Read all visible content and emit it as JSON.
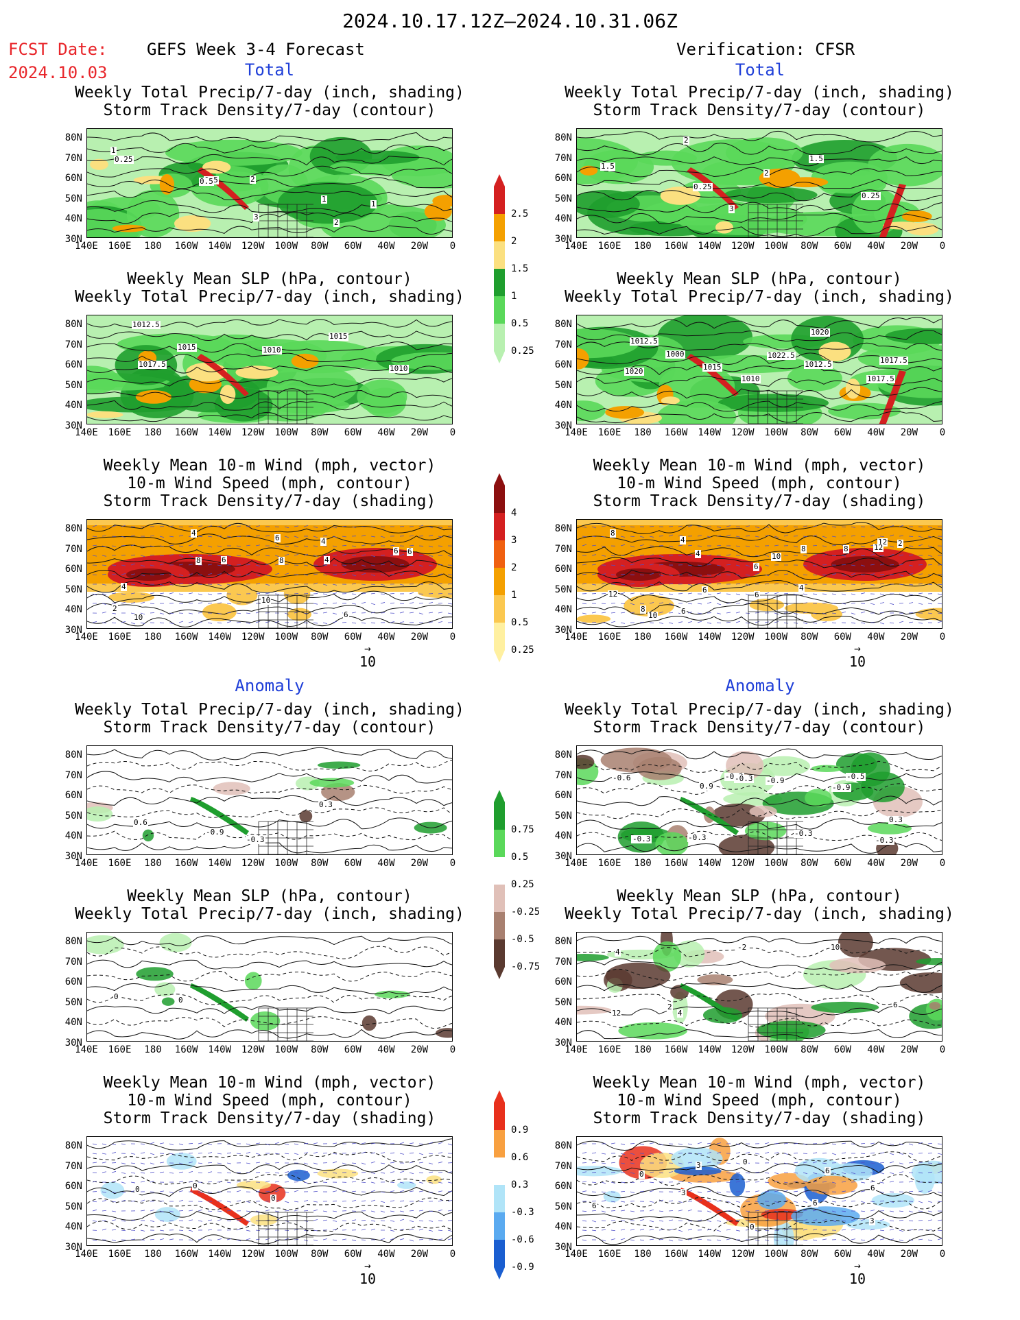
{
  "header": {
    "period": "2024.10.17.12Z—2024.10.31.06Z",
    "fcst_label": "FCST Date:",
    "fcst_date": "2024.10.03",
    "left_title": "GEFS Week 3-4 Forecast",
    "right_title": "Verification: CFSR"
  },
  "sections": {
    "total": "Total",
    "anomaly": "Anomaly"
  },
  "titles": {
    "precip_storm": [
      "Weekly Total Precip/7-day (inch, shading)",
      "Storm Track Density/7-day (contour)"
    ],
    "slp_precip": [
      "Weekly Mean SLP (hPa, contour)",
      "Weekly Total Precip/7-day (inch, shading)"
    ],
    "wind_storm": [
      "Weekly Mean 10-m Wind (mph, vector)",
      "10-m Wind Speed (mph, contour)",
      "Storm Track Density/7-day (shading)"
    ]
  },
  "axes": {
    "lat_ticks": [
      "80N",
      "70N",
      "60N",
      "50N",
      "40N",
      "30N"
    ],
    "lon_ticks": [
      "140E",
      "160E",
      "180",
      "160W",
      "140W",
      "120W",
      "100W",
      "80W",
      "60W",
      "40W",
      "20W",
      "0"
    ]
  },
  "vector_ref": "10",
  "colorbars": {
    "precip_total": [
      "2.5",
      "2",
      "1.5",
      "1",
      "0.5",
      "0.25"
    ],
    "storm_total": [
      "4",
      "3",
      "2",
      "1",
      "0.5",
      "0.25"
    ],
    "precip_anom": [
      "0.75",
      "0.5",
      "0.25",
      "-0.25",
      "-0.5",
      "-0.75"
    ],
    "storm_anom": [
      "0.9",
      "0.6",
      "0.3",
      "-0.3",
      "-0.6",
      "-0.9"
    ]
  },
  "colors": {
    "precip_total": [
      "#d42020",
      "#f4a000",
      "#fbe080",
      "#1f9e2e",
      "#5ad85a",
      "#b8f0b0"
    ],
    "storm_total": [
      "#8c0f0f",
      "#d42020",
      "#f06010",
      "#f4a000",
      "#fbc850",
      "#fff0a0"
    ],
    "precip_anom": [
      "#1f9e2e",
      "#5ad85a",
      "#b8f0b0",
      "#e0c0b8",
      "#a88070",
      "#5a3a30"
    ],
    "storm_anom": [
      "#e8301c",
      "#f8a040",
      "#fbe080",
      "#b0e4f8",
      "#5aaaf0",
      "#1a5ed0"
    ]
  },
  "contour_labels": {
    "p1": [
      "1",
      "0.5",
      "2",
      "2",
      "1",
      "0.25",
      "0.5",
      "3",
      "1"
    ],
    "p2": [
      "1",
      "0.25",
      "3",
      "1.5",
      "0.25",
      "1.5",
      "2",
      "2"
    ],
    "p3": [
      "1012.5",
      "1015",
      "1010",
      "1015",
      "1010",
      "1017.5"
    ],
    "p4": [
      "1012.5",
      "1000",
      "1010",
      "1012.5",
      "1017.5",
      "1020",
      "1015",
      "1022.5",
      "1020",
      "1017.5"
    ],
    "p5": [
      "2",
      "4",
      "6",
      "4",
      "6",
      "4",
      "8",
      "10",
      "6",
      "6",
      "10",
      "6",
      "8",
      "4"
    ],
    "p6": [
      "8",
      "4",
      "6",
      "4",
      "2",
      "12",
      "6",
      "10",
      "8",
      "12",
      "8",
      "4",
      "6",
      "8",
      "12",
      "10",
      "6"
    ],
    "p7": [
      "0.6",
      "-0.9",
      "-0.3",
      "0.3"
    ],
    "p8": [
      "0.6",
      "0.9",
      "-0.3",
      "-0.3",
      "-0.3",
      "-0.3",
      "0.9",
      "-0.3",
      "-0.9",
      "0.3",
      "-0.6",
      "-0.3",
      "-0.9",
      "-0.5"
    ],
    "p9": [
      "0",
      "0"
    ],
    "p10": [
      "12",
      "2",
      "-2",
      "10",
      "6",
      "4",
      "4"
    ],
    "p11": [
      "0",
      "0",
      "0"
    ],
    "p12": [
      "6",
      "3",
      "0",
      "6",
      "6",
      "0",
      "3",
      "0",
      "6",
      "3"
    ]
  }
}
